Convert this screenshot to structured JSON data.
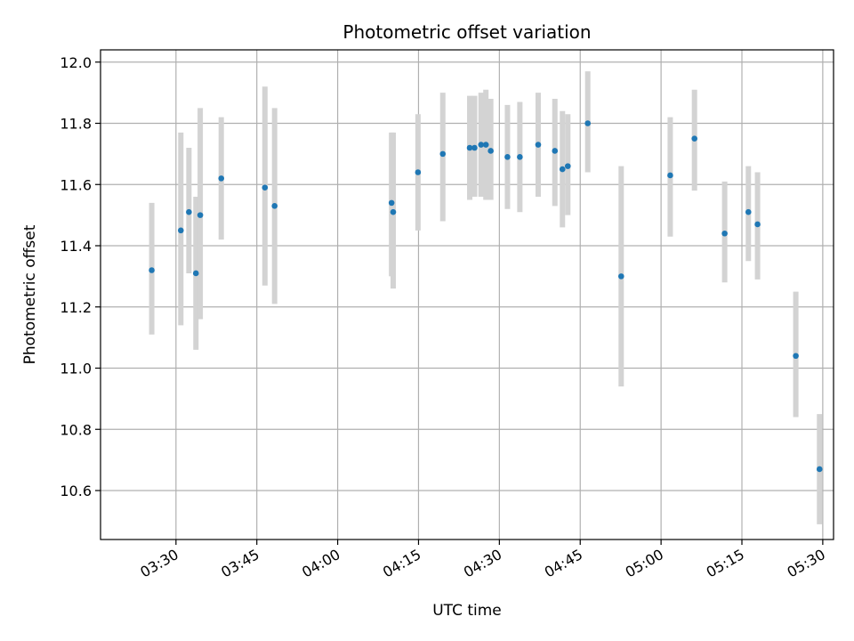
{
  "chart_data": {
    "type": "scatter",
    "title": "Photometric offset variation",
    "xlabel": "UTC time",
    "ylabel": "Photometric offset",
    "xlim_minutes": [
      196,
      332
    ],
    "ylim": [
      10.44,
      12.04
    ],
    "grid": true,
    "x_ticks": [
      {
        "minutes": 210,
        "label": "03:30"
      },
      {
        "minutes": 225,
        "label": "03:45"
      },
      {
        "minutes": 240,
        "label": "04:00"
      },
      {
        "minutes": 255,
        "label": "04:15"
      },
      {
        "minutes": 270,
        "label": "04:30"
      },
      {
        "minutes": 285,
        "label": "04:45"
      },
      {
        "minutes": 300,
        "label": "05:00"
      },
      {
        "minutes": 315,
        "label": "05:15"
      },
      {
        "minutes": 330,
        "label": "05:30"
      }
    ],
    "y_ticks": [
      {
        "value": 10.6,
        "label": "10.6"
      },
      {
        "value": 10.8,
        "label": "10.8"
      },
      {
        "value": 11.0,
        "label": "11.0"
      },
      {
        "value": 11.2,
        "label": "11.2"
      },
      {
        "value": 11.4,
        "label": "11.4"
      },
      {
        "value": 11.6,
        "label": "11.6"
      },
      {
        "value": 11.8,
        "label": "11.8"
      },
      {
        "value": 12.0,
        "label": "12.0"
      }
    ],
    "series": [
      {
        "name": "offset",
        "color": "#1f77b4",
        "errorbar_color": "#d3d3d3",
        "points": [
          {
            "t": 205.5,
            "y": 11.32,
            "lo": 11.11,
            "hi": 11.54
          },
          {
            "t": 210.9,
            "y": 11.45,
            "lo": 11.14,
            "hi": 11.77
          },
          {
            "t": 212.4,
            "y": 11.51,
            "lo": 11.31,
            "hi": 11.72
          },
          {
            "t": 213.7,
            "y": 11.31,
            "lo": 11.06,
            "hi": 11.56
          },
          {
            "t": 214.5,
            "y": 11.5,
            "lo": 11.16,
            "hi": 11.85
          },
          {
            "t": 218.4,
            "y": 11.62,
            "lo": 11.42,
            "hi": 11.82
          },
          {
            "t": 226.5,
            "y": 11.59,
            "lo": 11.27,
            "hi": 11.92
          },
          {
            "t": 228.3,
            "y": 11.53,
            "lo": 11.21,
            "hi": 11.85
          },
          {
            "t": 250.0,
            "y": 11.54,
            "lo": 11.3,
            "hi": 11.77
          },
          {
            "t": 250.3,
            "y": 11.51,
            "lo": 11.26,
            "hi": 11.77
          },
          {
            "t": 254.9,
            "y": 11.64,
            "lo": 11.45,
            "hi": 11.83
          },
          {
            "t": 259.5,
            "y": 11.7,
            "lo": 11.48,
            "hi": 11.9
          },
          {
            "t": 264.5,
            "y": 11.72,
            "lo": 11.55,
            "hi": 11.89
          },
          {
            "t": 265.4,
            "y": 11.72,
            "lo": 11.56,
            "hi": 11.89
          },
          {
            "t": 266.6,
            "y": 11.73,
            "lo": 11.56,
            "hi": 11.9
          },
          {
            "t": 267.5,
            "y": 11.73,
            "lo": 11.55,
            "hi": 11.91
          },
          {
            "t": 268.4,
            "y": 11.71,
            "lo": 11.55,
            "hi": 11.88
          },
          {
            "t": 271.5,
            "y": 11.69,
            "lo": 11.52,
            "hi": 11.86
          },
          {
            "t": 273.8,
            "y": 11.69,
            "lo": 11.51,
            "hi": 11.87
          },
          {
            "t": 277.2,
            "y": 11.73,
            "lo": 11.56,
            "hi": 11.9
          },
          {
            "t": 280.3,
            "y": 11.71,
            "lo": 11.53,
            "hi": 11.88
          },
          {
            "t": 281.7,
            "y": 11.65,
            "lo": 11.46,
            "hi": 11.84
          },
          {
            "t": 282.7,
            "y": 11.66,
            "lo": 11.5,
            "hi": 11.83
          },
          {
            "t": 286.4,
            "y": 11.8,
            "lo": 11.64,
            "hi": 11.97
          },
          {
            "t": 292.6,
            "y": 11.3,
            "lo": 10.94,
            "hi": 11.66
          },
          {
            "t": 301.7,
            "y": 11.63,
            "lo": 11.43,
            "hi": 11.82
          },
          {
            "t": 306.2,
            "y": 11.75,
            "lo": 11.58,
            "hi": 11.91
          },
          {
            "t": 311.8,
            "y": 11.44,
            "lo": 11.28,
            "hi": 11.61
          },
          {
            "t": 316.2,
            "y": 11.51,
            "lo": 11.35,
            "hi": 11.66
          },
          {
            "t": 317.9,
            "y": 11.47,
            "lo": 11.29,
            "hi": 11.64
          },
          {
            "t": 325.0,
            "y": 11.04,
            "lo": 10.84,
            "hi": 11.25
          },
          {
            "t": 329.4,
            "y": 10.67,
            "lo": 10.49,
            "hi": 10.85
          }
        ]
      }
    ]
  }
}
